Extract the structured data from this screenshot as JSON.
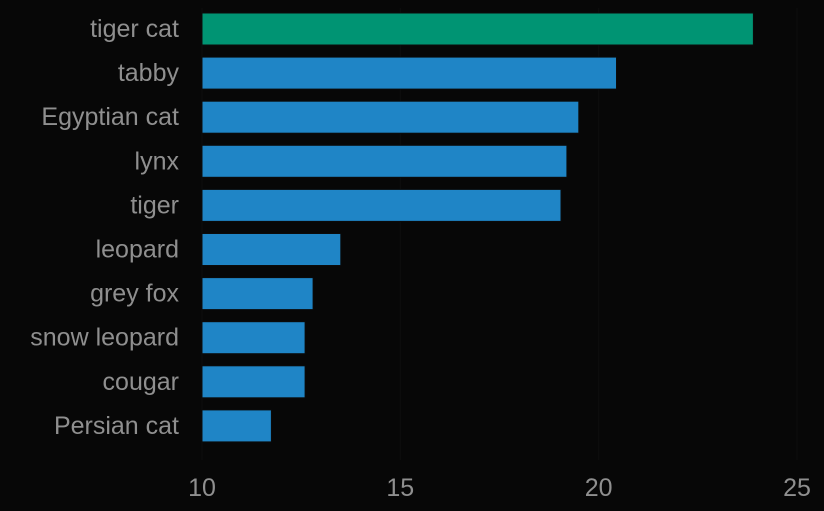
{
  "chart_data": {
    "type": "bar",
    "orientation": "horizontal",
    "categories": [
      "tiger cat",
      "tabby",
      "Egyptian cat",
      "lynx",
      "tiger",
      "leopard",
      "grey fox",
      "snow leopard",
      "cougar",
      "Persian cat"
    ],
    "values": [
      23.9,
      20.45,
      19.5,
      19.2,
      19.05,
      13.5,
      12.8,
      12.6,
      12.6,
      11.75
    ],
    "highlight_index": 0,
    "colors": {
      "bar": "#1f85c6",
      "highlight": "#009473",
      "background": "#070707",
      "text": "#8f8f8f",
      "grid": "#0e0e0e"
    },
    "xlim": [
      10,
      25
    ],
    "xticks": [
      10,
      15,
      20,
      25
    ],
    "xtick_labels": [
      "10",
      "15",
      "20",
      "25"
    ],
    "grid": true,
    "title": "",
    "xlabel": "",
    "ylabel": ""
  }
}
